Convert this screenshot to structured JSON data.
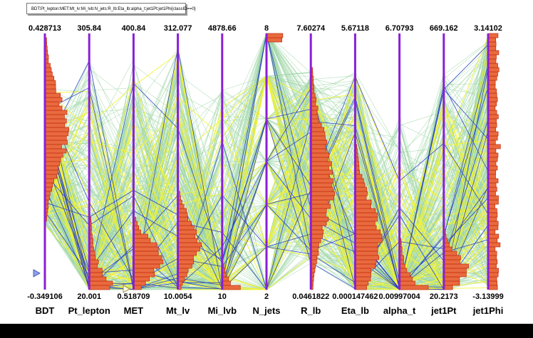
{
  "title": "BDT:Pt_lepton:MET:Mt_lv:Mi_lvb:N_jets:R_lb:Eta_lb:alpha_t:jet1Pt:jet1Phi{classID==0}",
  "colors": {
    "axis": "#8a1fd6",
    "background_lines": "#9ed6a6",
    "highlight_lines": "#f3f332",
    "selected_lines": "#2438c8",
    "hist_fill": "#e86a3e",
    "hist_edge": "#c42b10"
  },
  "chart_data": {
    "type": "parallel_coordinates",
    "variables": [
      {
        "name": "BDT",
        "max": "0.428713",
        "min": "-0.349106"
      },
      {
        "name": "Pt_lepton",
        "max": "305.84",
        "min": "20.001"
      },
      {
        "name": "MET",
        "max": "400.84",
        "min": "0.518709"
      },
      {
        "name": "Mt_lv",
        "max": "312.077",
        "min": "10.0054"
      },
      {
        "name": "Mi_lvb",
        "max": "4878.66",
        "min": "10"
      },
      {
        "name": "N_jets",
        "max": "8",
        "min": "2"
      },
      {
        "name": "R_lb",
        "max": "7.60274",
        "min": "0.0461822"
      },
      {
        "name": "Eta_lb",
        "max": "5.67118",
        "min": "0.000147462"
      },
      {
        "name": "alpha_t",
        "max": "6.70793",
        "min": "0.00997004"
      },
      {
        "name": "jet1Pt",
        "max": "669.162",
        "min": "20.2173"
      },
      {
        "name": "jet1Phi",
        "max": "3.14102",
        "min": "-3.13999"
      }
    ]
  }
}
